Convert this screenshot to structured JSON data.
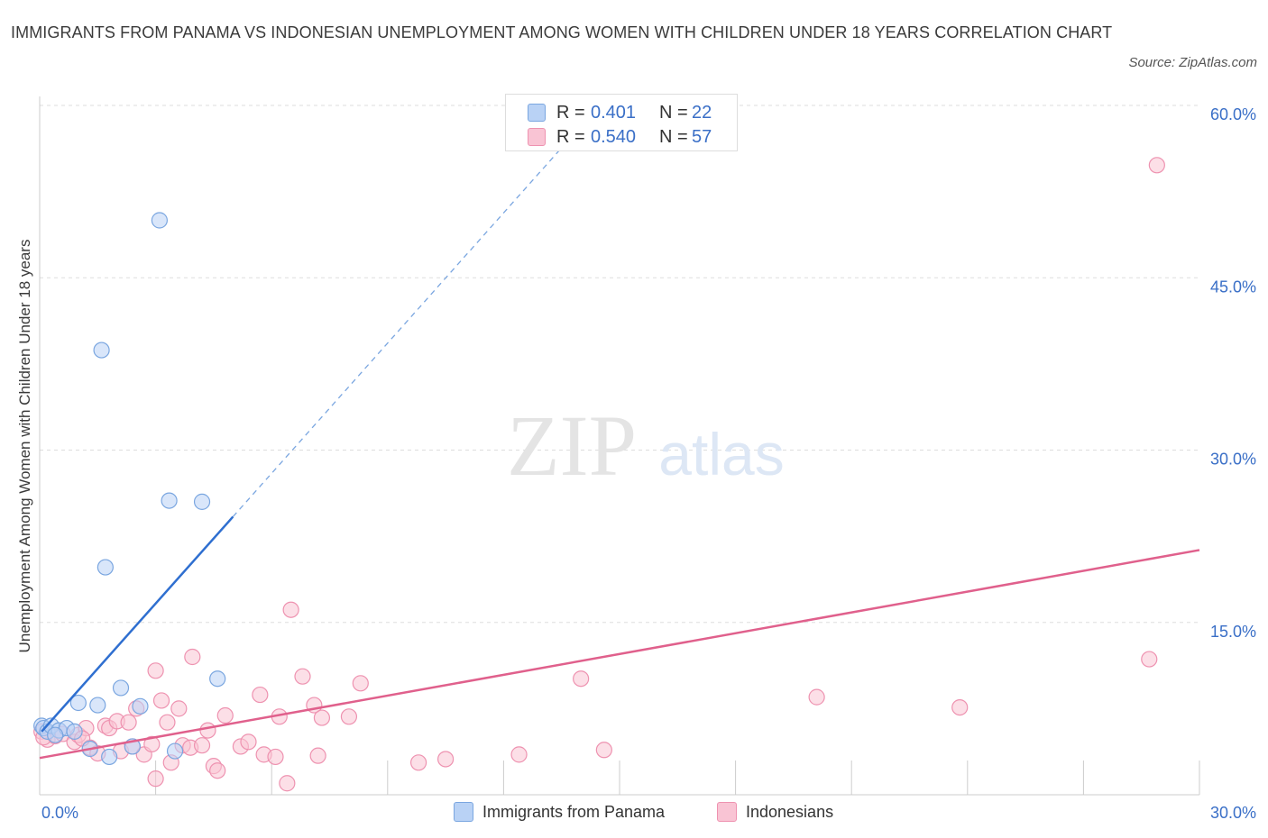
{
  "title": "IMMIGRANTS FROM PANAMA VS INDONESIAN UNEMPLOYMENT AMONG WOMEN WITH CHILDREN UNDER 18 YEARS CORRELATION CHART",
  "source": "Source: ZipAtlas.com",
  "watermark": {
    "zip": "ZIP",
    "atlas": "atlas"
  },
  "colors": {
    "panama_fill": "#b9d2f5",
    "panama_stroke": "#7aa6e0",
    "panama_line": "#2f6fd0",
    "indo_fill": "#f9c4d4",
    "indo_stroke": "#ee92b0",
    "indo_line": "#e0608c",
    "tick_label": "#3a6fc7",
    "grid": "#dddddd"
  },
  "legend": {
    "panama": {
      "r_label": "R =",
      "r_value": "0.401",
      "n_label": "N =",
      "n_value": "22"
    },
    "indo": {
      "r_label": "R =",
      "r_value": "0.540",
      "n_label": "N =",
      "n_value": "57"
    }
  },
  "chart_data": {
    "type": "scatter",
    "title": "IMMIGRANTS FROM PANAMA VS INDONESIAN UNEMPLOYMENT AMONG WOMEN WITH CHILDREN UNDER 18 YEARS CORRELATION CHART",
    "xlabel": "",
    "ylabel": "Unemployment Among Women with Children Under 18 years",
    "xlim": [
      0,
      30
    ],
    "ylim": [
      0,
      60
    ],
    "x_tick_labels": [
      "0.0%",
      "30.0%"
    ],
    "y_ticks": [
      15,
      30,
      45,
      60
    ],
    "y_tick_labels": [
      "15.0%",
      "30.0%",
      "45.0%",
      "60.0%"
    ],
    "grid": true,
    "series": [
      {
        "name": "Immigrants from Panama",
        "r": 0.401,
        "n": 22,
        "trend": {
          "x0": 0.05,
          "y0": 5.5,
          "x1": 5.0,
          "y1": 24.2,
          "x_dash_end": 13.5
        },
        "points": [
          [
            0.05,
            6.0
          ],
          [
            0.1,
            5.8
          ],
          [
            0.2,
            5.5
          ],
          [
            0.3,
            6.0
          ],
          [
            0.5,
            5.6
          ],
          [
            0.7,
            5.8
          ],
          [
            0.9,
            5.5
          ],
          [
            1.0,
            8.0
          ],
          [
            1.3,
            4.0
          ],
          [
            1.5,
            7.8
          ],
          [
            1.6,
            38.7
          ],
          [
            1.7,
            19.8
          ],
          [
            1.8,
            3.3
          ],
          [
            2.1,
            9.3
          ],
          [
            2.4,
            4.2
          ],
          [
            2.6,
            7.7
          ],
          [
            3.1,
            50.0
          ],
          [
            3.35,
            25.6
          ],
          [
            3.5,
            3.8
          ],
          [
            4.2,
            25.5
          ],
          [
            4.6,
            10.1
          ],
          [
            0.4,
            5.2
          ]
        ]
      },
      {
        "name": "Indonesians",
        "r": 0.54,
        "n": 57,
        "trend": {
          "x0": 0.0,
          "y0": 3.2,
          "x1": 30.0,
          "y1": 21.3
        },
        "points": [
          [
            0.05,
            5.5
          ],
          [
            0.2,
            4.8
          ],
          [
            0.4,
            5.1
          ],
          [
            0.6,
            5.3
          ],
          [
            0.9,
            4.6
          ],
          [
            1.0,
            5.2
          ],
          [
            1.2,
            5.8
          ],
          [
            1.3,
            4.1
          ],
          [
            1.5,
            3.6
          ],
          [
            1.7,
            6.0
          ],
          [
            1.8,
            5.8
          ],
          [
            2.0,
            6.4
          ],
          [
            2.1,
            3.8
          ],
          [
            2.3,
            6.3
          ],
          [
            2.4,
            4.2
          ],
          [
            2.5,
            7.5
          ],
          [
            2.7,
            3.5
          ],
          [
            2.9,
            4.4
          ],
          [
            3.0,
            1.4
          ],
          [
            3.0,
            10.8
          ],
          [
            3.15,
            8.2
          ],
          [
            3.3,
            6.3
          ],
          [
            3.4,
            2.8
          ],
          [
            3.6,
            7.5
          ],
          [
            3.7,
            4.3
          ],
          [
            3.9,
            4.1
          ],
          [
            3.95,
            12.0
          ],
          [
            4.2,
            4.3
          ],
          [
            4.35,
            5.6
          ],
          [
            4.5,
            2.5
          ],
          [
            4.6,
            2.1
          ],
          [
            4.8,
            6.9
          ],
          [
            5.2,
            4.2
          ],
          [
            5.4,
            4.6
          ],
          [
            5.7,
            8.7
          ],
          [
            5.8,
            3.5
          ],
          [
            6.1,
            3.3
          ],
          [
            6.2,
            6.8
          ],
          [
            6.4,
            1.0
          ],
          [
            6.5,
            16.1
          ],
          [
            6.8,
            10.3
          ],
          [
            7.1,
            7.8
          ],
          [
            7.2,
            3.4
          ],
          [
            7.3,
            6.7
          ],
          [
            8.0,
            6.8
          ],
          [
            8.3,
            9.7
          ],
          [
            9.8,
            2.8
          ],
          [
            10.5,
            3.1
          ],
          [
            12.4,
            3.5
          ],
          [
            14.0,
            10.1
          ],
          [
            14.6,
            3.9
          ],
          [
            20.1,
            8.5
          ],
          [
            23.8,
            7.6
          ],
          [
            28.7,
            11.8
          ],
          [
            28.9,
            54.8
          ],
          [
            0.1,
            5.0
          ],
          [
            1.1,
            4.9
          ]
        ]
      }
    ]
  },
  "bottom_legend": {
    "panama": "Immigrants from Panama",
    "indo": "Indonesians"
  }
}
